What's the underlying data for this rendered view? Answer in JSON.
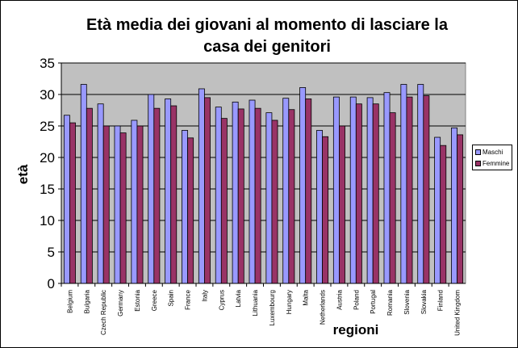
{
  "chart_data": {
    "type": "bar",
    "title_line1": "Età media dei giovani al momento di lasciare la",
    "title_line2": "casa dei genitori",
    "xlabel": "regioni",
    "ylabel": "età",
    "ylim": [
      0,
      35
    ],
    "yticks": [
      0,
      5,
      10,
      15,
      20,
      25,
      30,
      35
    ],
    "grid": true,
    "legend_position": "right",
    "plot_background": "#c0c0c0",
    "categories": [
      "Belgium",
      "Bulgaria",
      "Czech Republic",
      "Germany",
      "Estonia",
      "Greece",
      "Spain",
      "France",
      "Italy",
      "Cyprus",
      "Latvia",
      "Lithuania",
      "Luxembourg",
      "Hungary",
      "Malta",
      "Netherlands",
      "Austria",
      "Poland",
      "Portugal",
      "Romania",
      "Slovenia",
      "Slovakia",
      "Finland",
      "United Kingdom"
    ],
    "series": [
      {
        "name": "Maschi",
        "color": "#9999ff",
        "values": [
          26.7,
          31.6,
          28.5,
          25.0,
          25.9,
          30.0,
          29.3,
          24.3,
          30.9,
          28.0,
          28.8,
          29.1,
          27.1,
          29.4,
          31.1,
          24.3,
          29.6,
          29.6,
          29.5,
          30.3,
          31.6,
          31.6,
          23.2,
          24.7
        ]
      },
      {
        "name": "Femmine",
        "color": "#993366",
        "values": [
          25.5,
          27.8,
          25.0,
          23.9,
          25.0,
          27.8,
          28.2,
          23.1,
          29.5,
          26.2,
          27.7,
          27.8,
          25.9,
          27.6,
          29.3,
          23.3,
          25.0,
          28.5,
          28.5,
          27.1,
          29.6,
          29.8,
          21.9,
          23.6
        ]
      }
    ]
  }
}
